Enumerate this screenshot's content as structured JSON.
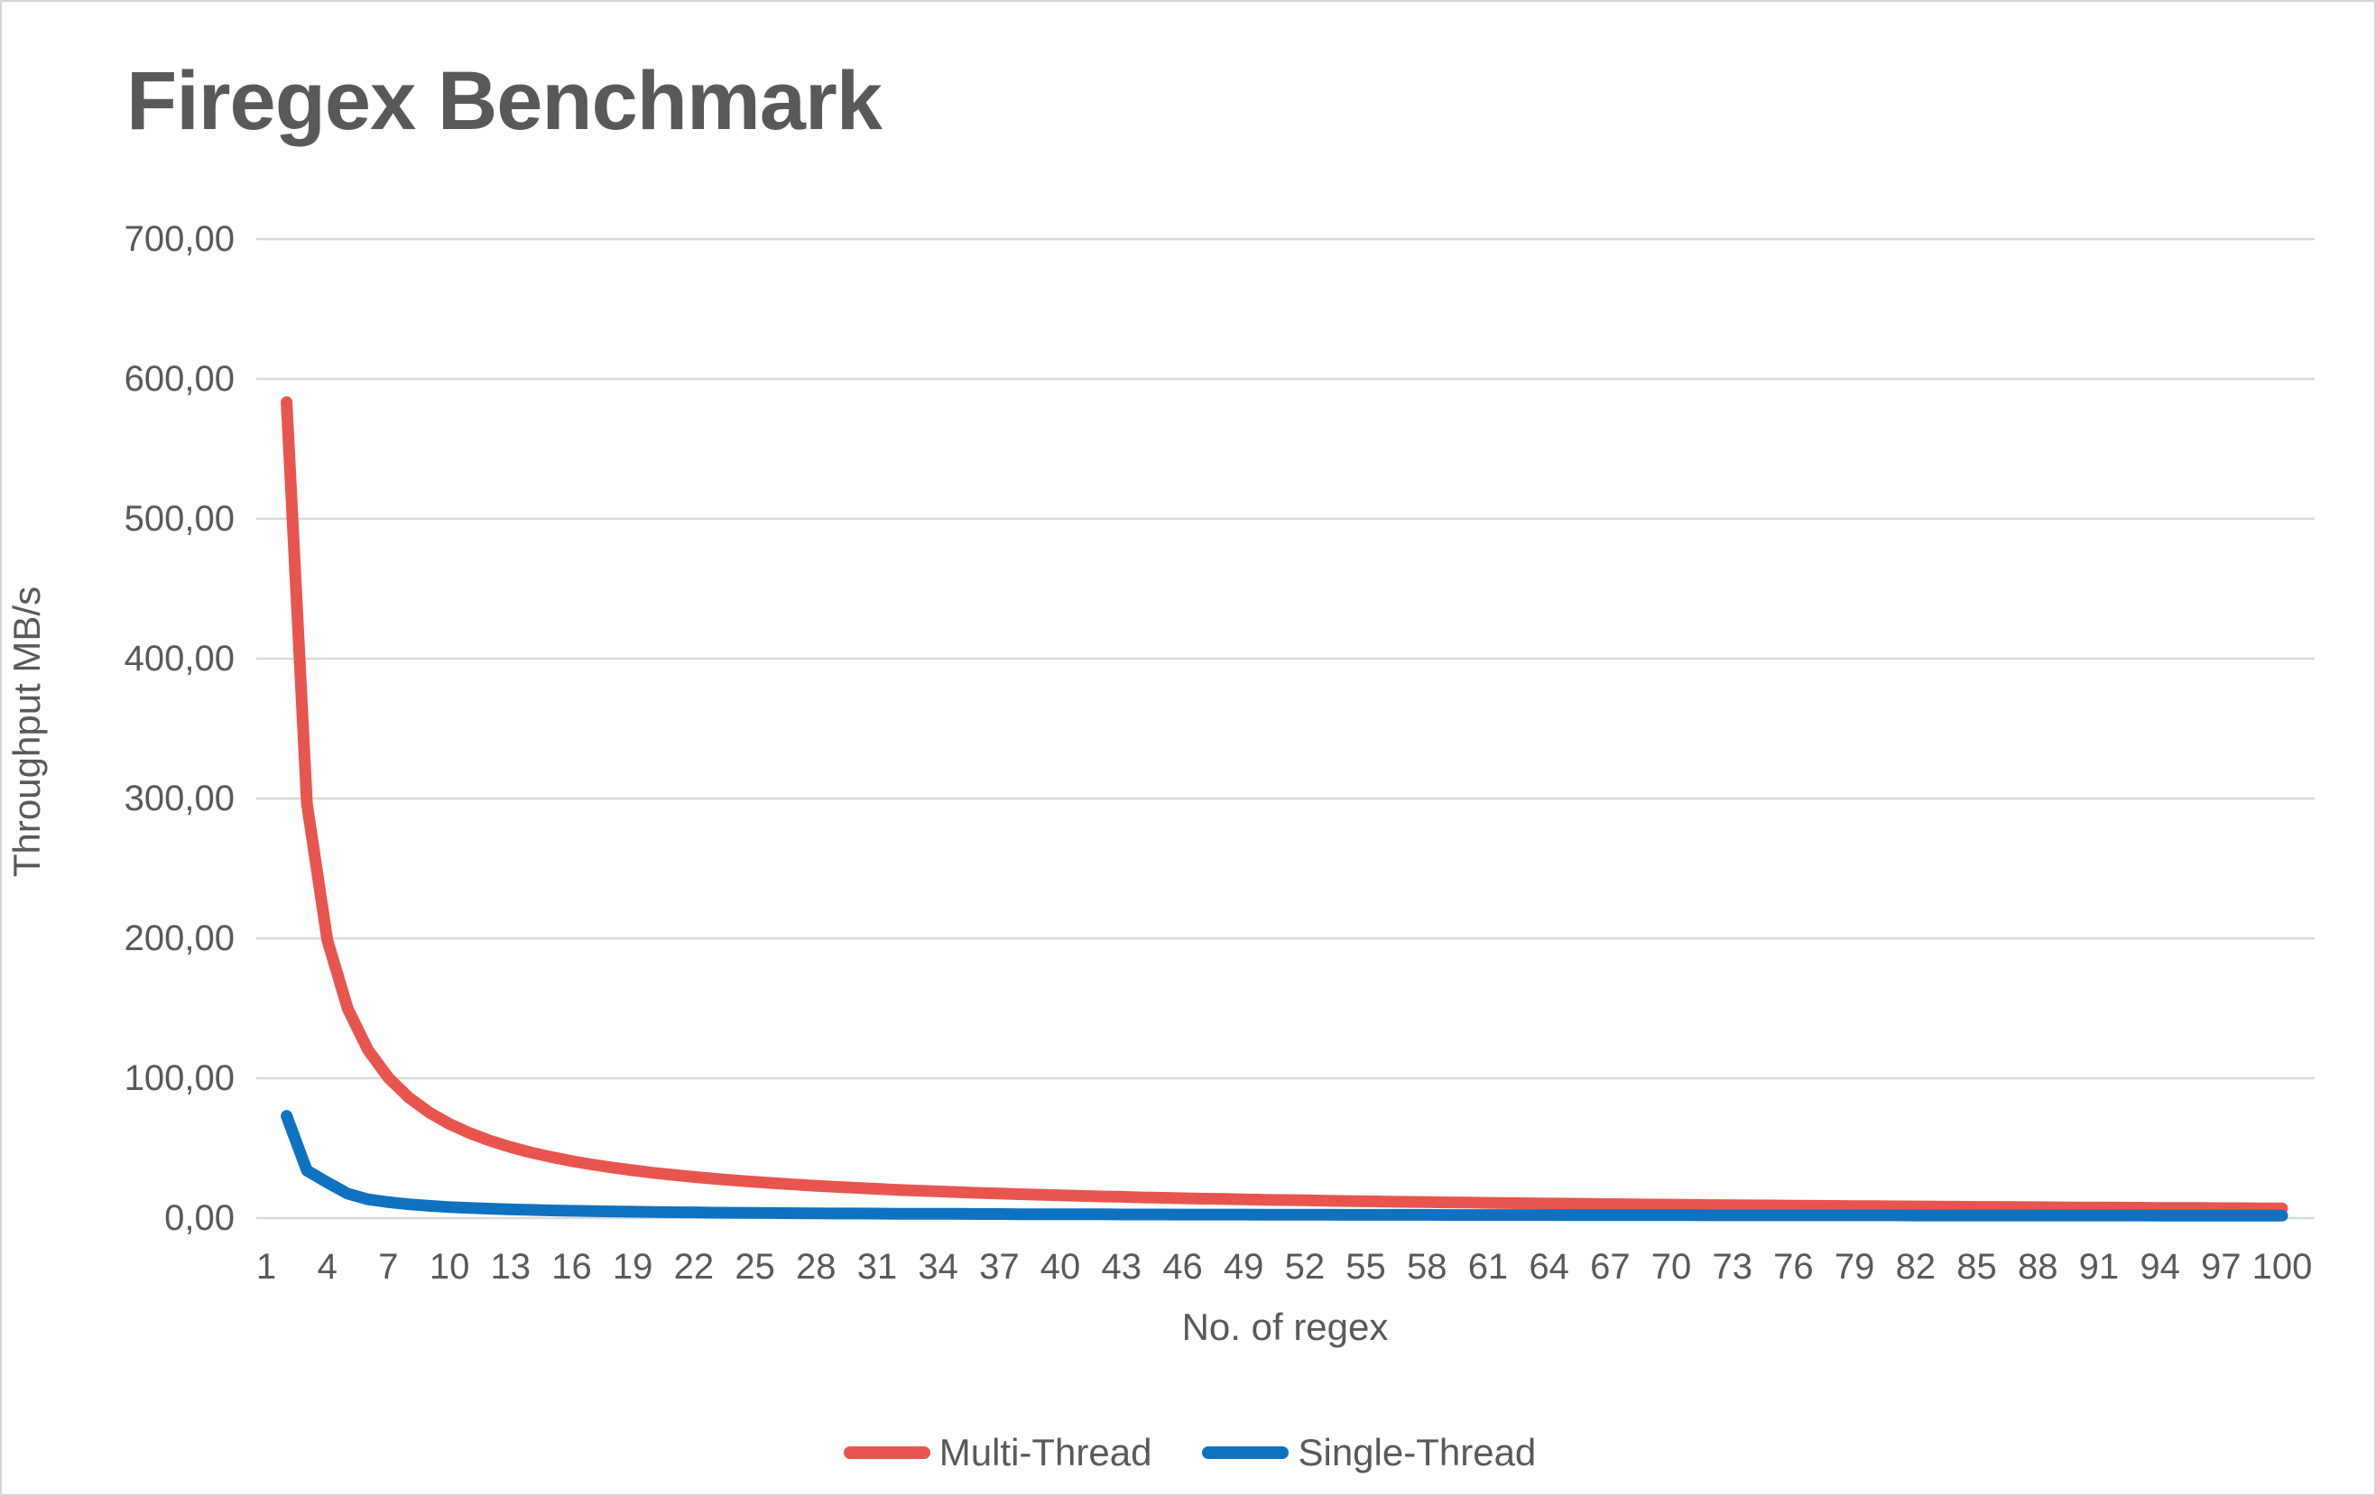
{
  "chart_data": {
    "type": "line",
    "title": "Firegex Benchmark",
    "xlabel": "No. of regex",
    "ylabel": "Throughput MB/s",
    "ylim": [
      0,
      700
    ],
    "xlim": [
      1,
      100
    ],
    "grid": true,
    "legend_position": "bottom",
    "yticks": [
      {
        "value": 0,
        "label": "0,00"
      },
      {
        "value": 100,
        "label": "100,00"
      },
      {
        "value": 200,
        "label": "200,00"
      },
      {
        "value": 300,
        "label": "300,00"
      },
      {
        "value": 400,
        "label": "400,00"
      },
      {
        "value": 500,
        "label": "500,00"
      },
      {
        "value": 600,
        "label": "600,00"
      },
      {
        "value": 700,
        "label": "700,00"
      }
    ],
    "xticks": [
      1,
      4,
      7,
      10,
      13,
      16,
      19,
      22,
      25,
      28,
      31,
      34,
      37,
      40,
      43,
      46,
      49,
      52,
      55,
      58,
      61,
      64,
      67,
      70,
      73,
      76,
      79,
      82,
      85,
      88,
      91,
      94,
      97,
      100
    ],
    "x": [
      2,
      3,
      4,
      5,
      6,
      7,
      8,
      9,
      10,
      11,
      12,
      13,
      14,
      15,
      16,
      17,
      18,
      19,
      20,
      21,
      22,
      23,
      24,
      25,
      26,
      27,
      28,
      29,
      30,
      31,
      32,
      33,
      34,
      35,
      36,
      37,
      38,
      39,
      40,
      41,
      42,
      43,
      44,
      45,
      46,
      47,
      48,
      49,
      50,
      51,
      52,
      53,
      54,
      55,
      56,
      57,
      58,
      59,
      60,
      61,
      62,
      63,
      64,
      65,
      66,
      67,
      68,
      69,
      70,
      71,
      72,
      73,
      74,
      75,
      76,
      77,
      78,
      79,
      80,
      81,
      82,
      83,
      84,
      85,
      86,
      87,
      88,
      89,
      90,
      91,
      92,
      93,
      94,
      95,
      96,
      97,
      98,
      99,
      100
    ],
    "series": [
      {
        "name": "Multi-Thread",
        "color": "#e8554f",
        "values": [
          583.4,
          296.5,
          198.9,
          149.8,
          120.2,
          100.4,
          86.2,
          75.6,
          67.3,
          60.7,
          55.3,
          50.8,
          46.9,
          43.7,
          40.8,
          38.3,
          36.1,
          34.2,
          32.4,
          30.9,
          29.4,
          28.1,
          27.0,
          25.9,
          24.9,
          24.0,
          23.1,
          22.3,
          21.6,
          20.9,
          20.2,
          19.6,
          19.1,
          18.5,
          18.0,
          17.6,
          17.1,
          16.7,
          16.3,
          15.9,
          15.5,
          15.2,
          14.8,
          14.5,
          14.2,
          13.9,
          13.7,
          13.4,
          13.1,
          12.9,
          12.7,
          12.4,
          12.2,
          12.0,
          11.8,
          11.6,
          11.4,
          11.2,
          11.1,
          10.9,
          10.7,
          10.6,
          10.4,
          10.3,
          10.1,
          10.0,
          9.9,
          9.7,
          9.6,
          9.5,
          9.3,
          9.2,
          9.1,
          9.0,
          8.9,
          8.8,
          8.7,
          8.6,
          8.5,
          8.4,
          8.3,
          8.2,
          8.1,
          8.0,
          8.0,
          7.9,
          7.8,
          7.7,
          7.6,
          7.6,
          7.5,
          7.4,
          7.3,
          7.3,
          7.2,
          7.1,
          7.1,
          7.0,
          7.0
        ]
      },
      {
        "name": "Single-Thread",
        "color": "#0e72c1",
        "values": [
          73.0,
          34.0,
          25.5,
          17.5,
          13.4,
          11.4,
          9.9,
          8.8,
          7.9,
          7.3,
          6.7,
          6.2,
          5.9,
          5.5,
          5.2,
          5.0,
          4.8,
          4.6,
          4.4,
          4.2,
          4.1,
          3.9,
          3.8,
          3.7,
          3.6,
          3.5,
          3.4,
          3.3,
          3.3,
          3.2,
          3.1,
          3.1,
          3.0,
          3.0,
          2.9,
          2.9,
          2.8,
          2.8,
          2.7,
          2.7,
          2.7,
          2.6,
          2.6,
          2.6,
          2.5,
          2.5,
          2.5,
          2.5,
          2.4,
          2.4,
          2.4,
          2.4,
          2.3,
          2.3,
          2.3,
          2.3,
          2.3,
          2.2,
          2.2,
          2.2,
          2.2,
          2.2,
          2.2,
          2.1,
          2.1,
          2.1,
          2.1,
          2.1,
          2.1,
          2.1,
          2.0,
          2.0,
          2.0,
          2.0,
          2.0,
          2.0,
          2.0,
          2.0,
          2.0,
          2.0,
          1.9,
          1.9,
          1.9,
          1.9,
          1.9,
          1.9,
          1.9,
          1.9,
          1.9,
          1.9,
          1.9,
          1.9,
          1.8,
          1.8,
          1.8,
          1.8,
          1.8,
          1.8,
          1.8
        ]
      }
    ],
    "gridline_color": "#d9d9d9",
    "text_color": "#595959"
  }
}
